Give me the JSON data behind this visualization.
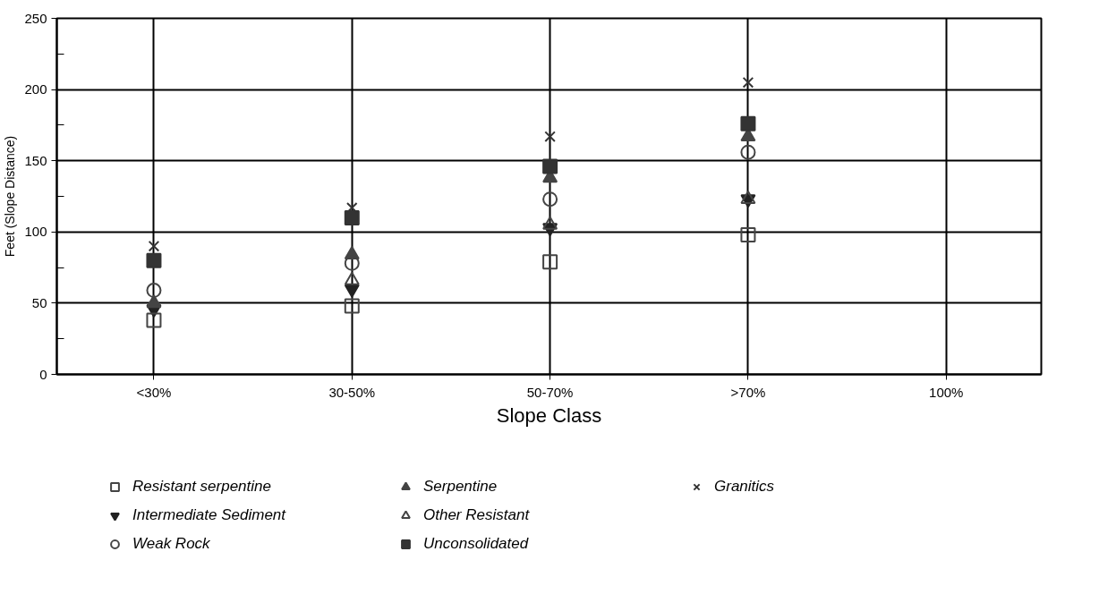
{
  "chart_data": {
    "type": "scatter",
    "xlabel": "Slope Class",
    "ylabel": "Feet (Slope Distance)",
    "categories": [
      "<30%",
      "30-50%",
      "50-70%",
      ">70%",
      "100%"
    ],
    "ylim": [
      0,
      250
    ],
    "yticks": [
      0,
      50,
      100,
      150,
      200,
      250
    ],
    "grid": true,
    "legend": "bottom",
    "series": [
      {
        "name": "Resistant serpentine",
        "color": "#444444",
        "marker": "square-open",
        "values": [
          38,
          48,
          79,
          98,
          null
        ]
      },
      {
        "name": "Intermediate Sediment",
        "color": "#222222",
        "marker": "triangle-down",
        "values": [
          46,
          60,
          103,
          123,
          null
        ]
      },
      {
        "name": "Weak Rock",
        "color": "#444444",
        "marker": "circle-open",
        "values": [
          59,
          78,
          123,
          156,
          null
        ]
      },
      {
        "name": "Serpentine",
        "color": "#444444",
        "marker": "triangle",
        "values": [
          50,
          84,
          138,
          167,
          null
        ]
      },
      {
        "name": "Other Resistant",
        "color": "#444444",
        "marker": "triangle-open",
        "values": [
          null,
          66,
          105,
          123,
          null
        ]
      },
      {
        "name": "Unconsolidated",
        "color": "#333333",
        "marker": "square",
        "values": [
          80,
          110,
          146,
          176,
          null
        ]
      },
      {
        "name": "Granitics",
        "color": "#333333",
        "marker": "cross",
        "values": [
          90,
          117,
          167,
          205,
          null
        ]
      }
    ]
  }
}
